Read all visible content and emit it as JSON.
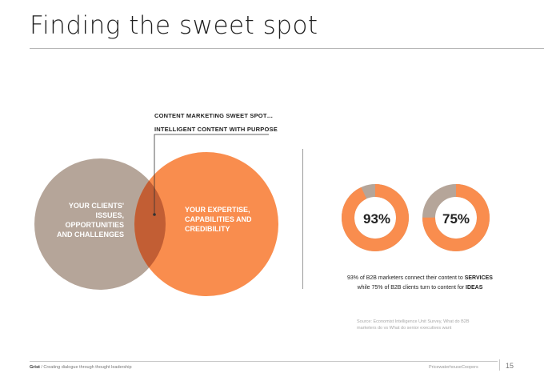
{
  "slide": {
    "title": "Finding the sweet spot"
  },
  "callout": {
    "line1": "CONTENT MARKETING  SWEET SPOT…",
    "line2": "INTELLIGENT CONTENT WITH PURPOSE"
  },
  "venn": {
    "left_lines": [
      "YOUR CLIENTS'",
      "ISSUES,",
      "OPPORTUNITIES",
      "AND CHALLENGES"
    ],
    "right_lines": [
      "YOUR EXPERTISE,",
      "CAPABILITIES AND",
      "CREDIBILITY"
    ],
    "left_color": "#b5a599",
    "right_color": "#f98d4e",
    "overlap_color": "#c25e34"
  },
  "donuts": [
    {
      "value": 93,
      "label": "93%",
      "fill_color": "#f98d4e",
      "rest_color": "#b5a599"
    },
    {
      "value": 75,
      "label": "75%",
      "fill_color": "#f98d4e",
      "rest_color": "#b5a599"
    }
  ],
  "caption": {
    "line1_pre": "93% of B2B marketers connect their content to ",
    "line1_bold": "SERVICES",
    "line2_pre": "while 75% of B2B clients turn to content for ",
    "line2_bold": "IDEAS"
  },
  "source": {
    "line1": "Source: Economist Intelligence Unit Survey, What do B2B",
    "line2": "marketers do vs What do senior executives want"
  },
  "footer": {
    "brand": "Grist",
    "tagline": " / Creating dialogue through thought leadership",
    "company": "PricewaterhouseCoopers",
    "page_number": "15"
  }
}
